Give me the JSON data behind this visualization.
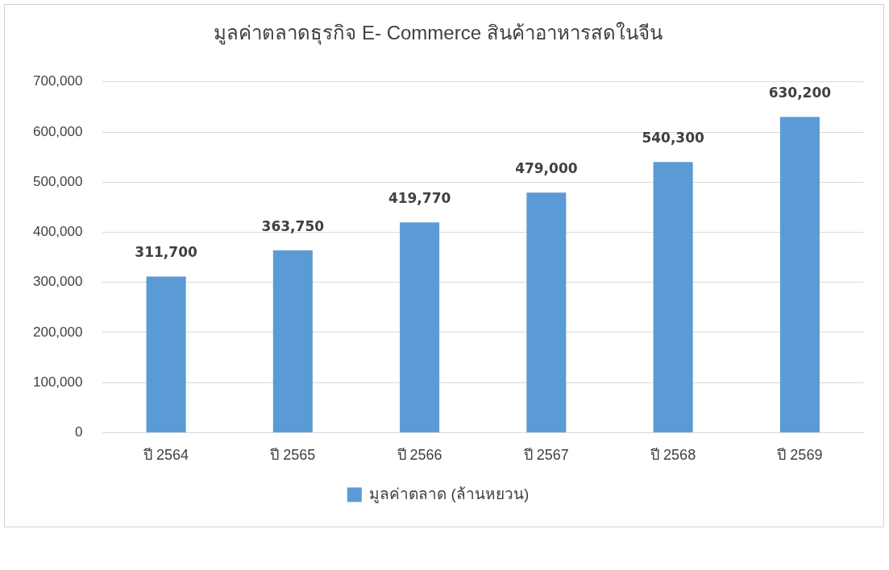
{
  "chart_data": {
    "type": "bar",
    "title": "มูลค่าตลาดธุรกิจ E- Commerce สินค้าอาหารสดในจีน",
    "categories": [
      "ปี 2564",
      "ปี 2565",
      "ปี 2566",
      "ปี 2567",
      "ปี 2568",
      "ปี 2569"
    ],
    "series": [
      {
        "name": "มูลค่าตลาด (ล้านหยวน)",
        "color": "#5b9bd5",
        "values": [
          311700,
          363750,
          419770,
          479000,
          540300,
          630200
        ],
        "value_labels": [
          "311,700",
          "363,750",
          "419,770",
          "479,000",
          "540,300",
          "630,200"
        ]
      }
    ],
    "ylim": [
      0,
      700000
    ],
    "yticks": [
      0,
      {
        "value": 100000,
        "label": "100,000"
      },
      {
        "value": 200000,
        "label": "200,000"
      },
      {
        "value": 300000,
        "label": "300,000"
      },
      {
        "value": 400000,
        "label": "400,000"
      },
      {
        "value": 500000,
        "label": "500,000"
      },
      {
        "value": 600000,
        "label": "600,000"
      },
      {
        "value": 700000,
        "label": "700,000"
      }
    ],
    "grid": "y",
    "legend": "bottom"
  }
}
